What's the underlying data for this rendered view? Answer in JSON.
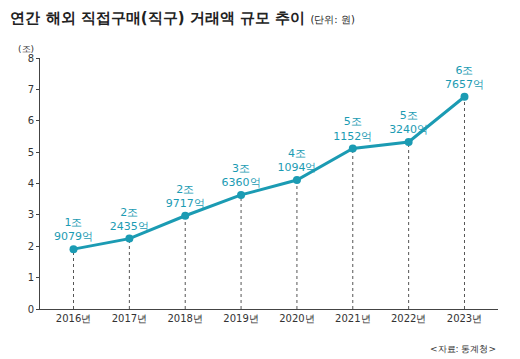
{
  "chart_data": {
    "type": "line",
    "title": "연간 해외 직접구매(직구) 거래액 규모 추이",
    "subtitle": "(단위: 원)",
    "ylabel": "(조)",
    "source": "<자료: 통계청>",
    "categories": [
      "2016년",
      "2017년",
      "2018년",
      "2019년",
      "2020년",
      "2021년",
      "2022년",
      "2023년"
    ],
    "values": [
      1.9079,
      2.2435,
      2.9717,
      3.636,
      4.1094,
      5.1152,
      5.324,
      6.7657
    ],
    "value_labels": [
      "1조 9079억",
      "2조 2435억",
      "2조 9717억",
      "3조 6360억",
      "4조 1094억",
      "5조 1152억",
      "5조 3240억",
      "6조 7657억"
    ],
    "data_labels": true,
    "color": "#1b9bb3",
    "marker": "circle",
    "ylim": [
      0,
      8
    ],
    "yticks": [
      0,
      1,
      2,
      3,
      4,
      5,
      6,
      7,
      8
    ],
    "grid": false
  }
}
